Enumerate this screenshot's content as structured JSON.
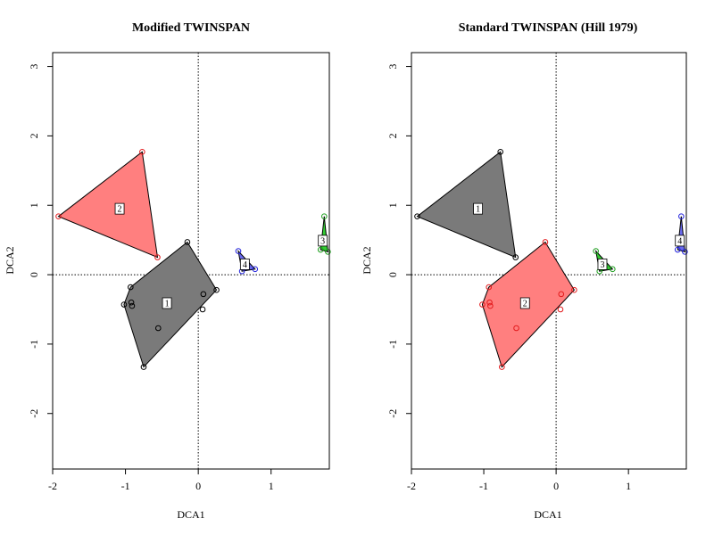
{
  "chart_data": [
    {
      "type": "scatter",
      "title": "Modified TWINSPAN",
      "xlabel": "DCA1",
      "ylabel": "DCA2",
      "xlim": [
        -2,
        1.8
      ],
      "ylim": [
        -2.8,
        3.2
      ],
      "xticks": [
        "-2",
        "-1",
        "0",
        "1"
      ],
      "yticks": [
        "-2",
        "-1",
        "0",
        "1",
        "2",
        "3"
      ],
      "reference_lines": {
        "x": 0,
        "y": 0
      },
      "groups": [
        {
          "label": "1",
          "color": "#000000",
          "fill": "#7a7a7a",
          "points": [
            [
              -0.15,
              0.47
            ],
            [
              0.25,
              -0.22
            ],
            [
              0.07,
              -0.28
            ],
            [
              0.06,
              -0.5
            ],
            [
              -0.55,
              -0.77
            ],
            [
              -0.75,
              -1.33
            ],
            [
              -1.02,
              -0.43
            ],
            [
              -0.92,
              -0.4
            ],
            [
              -0.91,
              -0.45
            ],
            [
              -0.93,
              -0.18
            ]
          ],
          "hull": [
            [
              -0.15,
              0.47
            ],
            [
              0.25,
              -0.22
            ],
            [
              -0.75,
              -1.33
            ],
            [
              -1.02,
              -0.43
            ],
            [
              -0.93,
              -0.18
            ]
          ],
          "label_pos": [
            -0.43,
            -0.41
          ]
        },
        {
          "label": "2",
          "color": "#e31a1c",
          "fill": "#ff7f7f",
          "points": [
            [
              -1.92,
              0.84
            ],
            [
              -0.77,
              1.77
            ],
            [
              -0.56,
              0.25
            ]
          ],
          "hull": [
            [
              -1.92,
              0.84
            ],
            [
              -0.77,
              1.77
            ],
            [
              -0.56,
              0.25
            ]
          ],
          "label_pos": [
            -1.08,
            0.95
          ]
        },
        {
          "label": "3",
          "color": "#1fa01f",
          "fill": "#33cc33",
          "points": [
            [
              1.73,
              0.84
            ],
            [
              1.68,
              0.36
            ],
            [
              1.78,
              0.33
            ]
          ],
          "hull": [
            [
              1.73,
              0.84
            ],
            [
              1.68,
              0.36
            ],
            [
              1.78,
              0.33
            ]
          ],
          "label_pos": [
            1.71,
            0.49
          ]
        },
        {
          "label": "4",
          "color": "#2222dd",
          "fill": "#6a6aee",
          "points": [
            [
              0.55,
              0.34
            ],
            [
              0.78,
              0.08
            ],
            [
              0.6,
              0.05
            ]
          ],
          "hull": [
            [
              0.55,
              0.34
            ],
            [
              0.78,
              0.08
            ],
            [
              0.6,
              0.05
            ]
          ],
          "label_pos": [
            0.64,
            0.15
          ]
        }
      ]
    },
    {
      "type": "scatter",
      "title": "Standard TWINSPAN (Hill 1979)",
      "xlabel": "DCA1",
      "ylabel": "DCA2",
      "xlim": [
        -2,
        1.8
      ],
      "ylim": [
        -2.8,
        3.2
      ],
      "xticks": [
        "-2",
        "-1",
        "0",
        "1"
      ],
      "yticks": [
        "-2",
        "-1",
        "0",
        "1",
        "2",
        "3"
      ],
      "reference_lines": {
        "x": 0,
        "y": 0
      },
      "groups": [
        {
          "label": "1",
          "color": "#000000",
          "fill": "#7a7a7a",
          "points": [
            [
              -1.92,
              0.84
            ],
            [
              -0.77,
              1.77
            ],
            [
              -0.56,
              0.25
            ]
          ],
          "hull": [
            [
              -1.92,
              0.84
            ],
            [
              -0.77,
              1.77
            ],
            [
              -0.56,
              0.25
            ]
          ],
          "label_pos": [
            -1.08,
            0.95
          ]
        },
        {
          "label": "2",
          "color": "#e31a1c",
          "fill": "#ff7f7f",
          "points": [
            [
              -0.15,
              0.47
            ],
            [
              0.25,
              -0.22
            ],
            [
              0.07,
              -0.28
            ],
            [
              0.06,
              -0.5
            ],
            [
              -0.55,
              -0.77
            ],
            [
              -0.75,
              -1.33
            ],
            [
              -1.02,
              -0.43
            ],
            [
              -0.92,
              -0.4
            ],
            [
              -0.91,
              -0.45
            ],
            [
              -0.93,
              -0.18
            ]
          ],
          "hull": [
            [
              -0.15,
              0.47
            ],
            [
              0.25,
              -0.22
            ],
            [
              -0.75,
              -1.33
            ],
            [
              -1.02,
              -0.43
            ],
            [
              -0.93,
              -0.18
            ]
          ],
          "label_pos": [
            -0.43,
            -0.41
          ]
        },
        {
          "label": "3",
          "color": "#1fa01f",
          "fill": "#33cc33",
          "points": [
            [
              0.55,
              0.34
            ],
            [
              0.78,
              0.08
            ],
            [
              0.6,
              0.05
            ]
          ],
          "hull": [
            [
              0.55,
              0.34
            ],
            [
              0.78,
              0.08
            ],
            [
              0.6,
              0.05
            ]
          ],
          "label_pos": [
            0.64,
            0.15
          ]
        },
        {
          "label": "4",
          "color": "#2222dd",
          "fill": "#6a6aee",
          "points": [
            [
              1.73,
              0.84
            ],
            [
              1.68,
              0.36
            ],
            [
              1.78,
              0.33
            ]
          ],
          "hull": [
            [
              1.73,
              0.84
            ],
            [
              1.68,
              0.36
            ],
            [
              1.78,
              0.33
            ]
          ],
          "label_pos": [
            1.71,
            0.49
          ]
        }
      ]
    }
  ]
}
